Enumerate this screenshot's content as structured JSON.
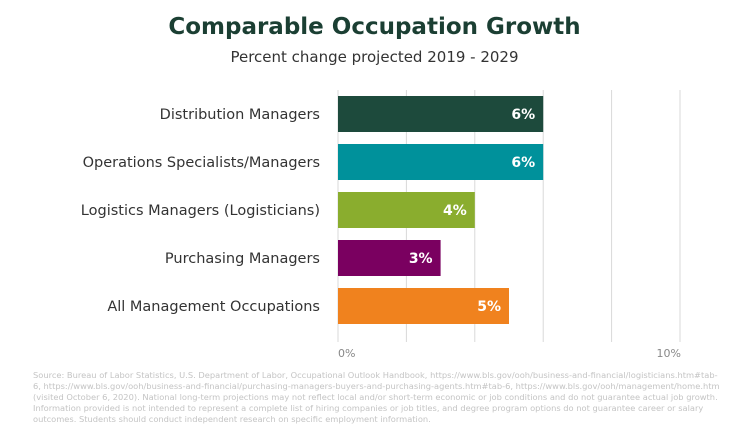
{
  "chart_data": {
    "type": "bar",
    "orientation": "horizontal",
    "title": "Comparable Occupation Growth",
    "subtitle": "Percent change projected 2019 - 2029",
    "categories": [
      "Distribution Managers",
      "Operations Specialists/Managers",
      "Logistics Managers (Logisticians)",
      "Purchasing Managers",
      "All Management Occupations"
    ],
    "values": [
      6,
      6,
      4,
      3,
      5
    ],
    "value_labels": [
      "6%",
      "6%",
      "4%",
      "3%",
      "5%"
    ],
    "colors": [
      "#1d4a3c",
      "#00919b",
      "#8aad2e",
      "#7a0060",
      "#f0821e"
    ],
    "xlim": [
      0,
      10
    ],
    "x_ticks": [
      {
        "value": 0,
        "label": "0%"
      },
      {
        "value": 10,
        "label": "10%"
      }
    ],
    "gridlines": [
      0,
      2,
      4,
      6,
      8,
      10
    ],
    "grid": true,
    "xlabel": "",
    "ylabel": ""
  },
  "source_text": "Source: Bureau of Labor Statistics, U.S. Department of Labor, Occupational Outlook Handbook, https://www.bls.gov/ooh/business-and-financial/logisticians.htm#tab-6, https://www.bls.gov/ooh/business-and-financial/purchasing-managers-buyers-and-purchasing-agents.htm#tab-6, https://www.bls.gov/ooh/management/home.htm (visited October 6, 2020). National long-term projections may not reflect local and/or short-term economic or job conditions and do not guarantee actual job growth. Information provided is not intended to represent a complete list of hiring companies or job titles, and degree program options do not guarantee career or salary outcomes. Students should conduct independent research on specific employment information."
}
